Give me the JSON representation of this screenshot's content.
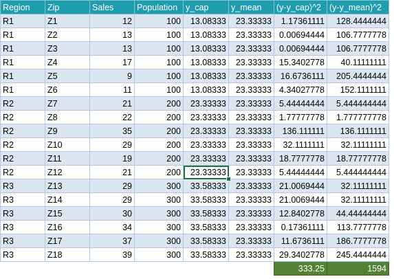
{
  "headers": [
    "Region",
    "Zip",
    "Sales",
    "Population",
    "y_cap",
    "y_mean",
    "(y-y_cap)^2",
    "(y-y_mean)^2"
  ],
  "rows": [
    [
      "R1",
      "Z1",
      "12",
      "100",
      "13.08333",
      "23.33333",
      "1.17361111",
      "128.4444444"
    ],
    [
      "R1",
      "Z2",
      "13",
      "100",
      "13.08333",
      "23.33333",
      "0.00694444",
      "106.7777778"
    ],
    [
      "R1",
      "Z3",
      "13",
      "100",
      "13.08333",
      "23.33333",
      "0.00694444",
      "106.7777778"
    ],
    [
      "R1",
      "Z4",
      "17",
      "100",
      "13.08333",
      "23.33333",
      "15.3402778",
      "40.11111111"
    ],
    [
      "R1",
      "Z5",
      "9",
      "100",
      "13.08333",
      "23.33333",
      "16.6736111",
      "205.4444444"
    ],
    [
      "R1",
      "Z6",
      "11",
      "100",
      "13.08333",
      "23.33333",
      "4.34027778",
      "152.1111111"
    ],
    [
      "R2",
      "Z7",
      "21",
      "200",
      "23.33333",
      "23.33333",
      "5.44444444",
      "5.444444444"
    ],
    [
      "R2",
      "Z8",
      "22",
      "200",
      "23.33333",
      "23.33333",
      "1.77777778",
      "1.777777778"
    ],
    [
      "R2",
      "Z9",
      "35",
      "200",
      "23.33333",
      "23.33333",
      "136.111111",
      "136.1111111"
    ],
    [
      "R2",
      "Z10",
      "29",
      "200",
      "23.33333",
      "23.33333",
      "32.1111111",
      "32.11111111"
    ],
    [
      "R2",
      "Z11",
      "19",
      "200",
      "23.33333",
      "23.33333",
      "18.7777778",
      "18.77777778"
    ],
    [
      "R2",
      "Z12",
      "21",
      "200",
      "23.33333",
      "23.33333",
      "5.44444444",
      "5.444444444"
    ],
    [
      "R3",
      "Z13",
      "29",
      "300",
      "33.58333",
      "23.33333",
      "21.0069444",
      "32.11111111"
    ],
    [
      "R3",
      "Z14",
      "29",
      "300",
      "33.58333",
      "23.33333",
      "21.0069444",
      "32.11111111"
    ],
    [
      "R3",
      "Z15",
      "30",
      "300",
      "33.58333",
      "23.33333",
      "12.8402778",
      "44.44444444"
    ],
    [
      "R3",
      "Z16",
      "34",
      "300",
      "33.58333",
      "23.33333",
      "0.17361111",
      "113.7777778"
    ],
    [
      "R3",
      "Z17",
      "37",
      "300",
      "33.58333",
      "23.33333",
      "11.6736111",
      "186.7777778"
    ],
    [
      "R3",
      "Z18",
      "39",
      "300",
      "33.58333",
      "23.33333",
      "29.3402778",
      "245.4444444"
    ]
  ],
  "totals": {
    "sse": "333.25",
    "sst": "1594"
  },
  "colors": {
    "header": "#1f9cb0",
    "band": "#dce6f1",
    "total": "#548235",
    "selection": "#217346"
  },
  "selection": {
    "row_index": 11,
    "col_index": 4
  }
}
